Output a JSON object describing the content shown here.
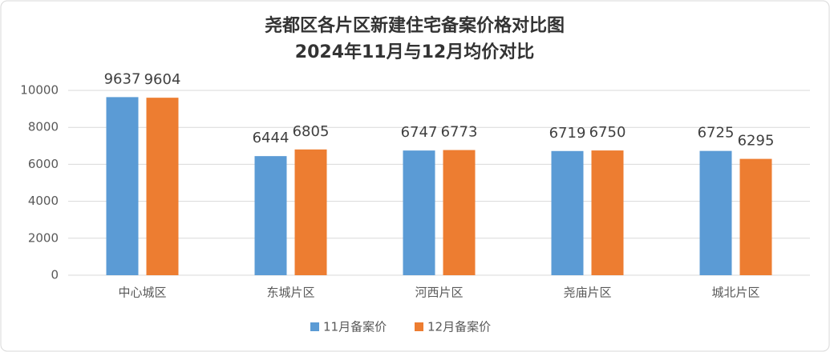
{
  "chart_data": {
    "type": "bar",
    "title": "尧都区各片区新建住宅备案价格对比图",
    "subtitle": "2024年11月与12月均价对比",
    "categories": [
      "中心城区",
      "东城片区",
      "河西片区",
      "尧庙片区",
      "城北片区"
    ],
    "series": [
      {
        "name": "11月备案价",
        "color": "#5b9bd5",
        "values": [
          9637,
          6444,
          6747,
          6719,
          6725
        ]
      },
      {
        "name": "12月备案价",
        "color": "#ed7d31",
        "values": [
          9604,
          6805,
          6773,
          6750,
          6295
        ]
      }
    ],
    "ylim": [
      0,
      10000
    ],
    "yticks": [
      0,
      2000,
      4000,
      6000,
      8000,
      10000
    ],
    "grid": true
  }
}
